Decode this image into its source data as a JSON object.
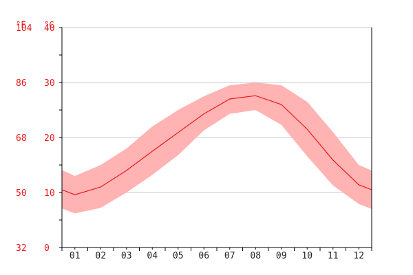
{
  "chart_data": {
    "type": "area",
    "title": "",
    "xlabel": "",
    "ylabel": "",
    "units": {
      "fahrenheit": "°F",
      "celsius": "°C"
    },
    "categories": [
      "01",
      "02",
      "03",
      "04",
      "05",
      "06",
      "07",
      "08",
      "09",
      "10",
      "11",
      "12"
    ],
    "x_range": [
      0.5,
      12.5
    ],
    "ylim": [
      0,
      40
    ],
    "y_ticks_celsius": [
      "0",
      "10",
      "20",
      "30",
      "40"
    ],
    "y_ticks_fahrenheit": [
      "32",
      "50",
      "68",
      "86",
      "104"
    ],
    "grid": true,
    "legend": "none",
    "colors": {
      "band": "#ffb3b3",
      "line": "#e8191e",
      "text_red": "#e8191e",
      "grid": "#c8c8c8",
      "axis": "#000000"
    },
    "series": [
      {
        "values": [
          9.6,
          11.0,
          14.0,
          17.5,
          20.9,
          24.3,
          27.0,
          27.6,
          26.0,
          21.5,
          15.9,
          11.4
        ]
      },
      {
        "values": [
          13.0,
          15.0,
          18.0,
          22.0,
          25.0,
          27.5,
          29.5,
          30.0,
          29.5,
          26.5,
          21.0,
          15.0
        ]
      },
      {
        "values": [
          6.2,
          7.2,
          10.0,
          13.2,
          16.8,
          21.3,
          24.3,
          25.0,
          22.3,
          16.6,
          11.3,
          7.9
        ]
      }
    ],
    "edge_values": {
      "line": [
        10.5,
        10.5
      ],
      "band_upper": [
        14.1,
        14.0
      ],
      "band_lower": [
        7.1,
        7.0
      ]
    }
  }
}
